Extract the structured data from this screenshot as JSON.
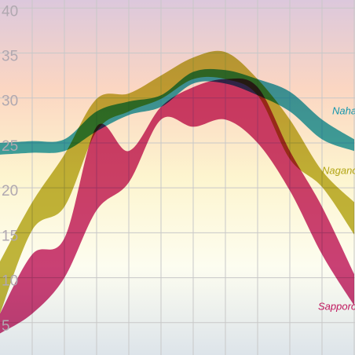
{
  "chart_data": {
    "type": "range-area",
    "ylim": [
      1.4,
      40.9
    ],
    "yticks": [
      5,
      10,
      15,
      20,
      25,
      30,
      35,
      40
    ],
    "grid": true,
    "series": [
      {
        "name": "Naha",
        "color": "#1496ad",
        "high": [
          25.0,
          25.2,
          25.4,
          28.5,
          29.6,
          30.3,
          32.9,
          33.1,
          32.1,
          30.7,
          27.6,
          25.4
        ],
        "low": [
          23.7,
          23.9,
          24.1,
          26.3,
          28.1,
          29.0,
          31.6,
          31.6,
          30.3,
          28.5,
          25.4,
          24.1
        ]
      },
      {
        "name": "Nagano",
        "color": "#b3a615",
        "high": [
          11.8,
          18.4,
          23.7,
          29.9,
          30.5,
          32.5,
          34.5,
          35.1,
          32.1,
          27.6,
          21.9,
          18.4
        ],
        "low": [
          6.0,
          15.3,
          17.9,
          26.3,
          28.5,
          29.9,
          32.1,
          32.1,
          30.3,
          23.2,
          20.1,
          14.8
        ]
      },
      {
        "name": "Sapporo",
        "color": "#c0175e",
        "high": [
          6.0,
          12.6,
          14.4,
          26.8,
          24.1,
          29.0,
          31.2,
          32.1,
          31.2,
          24.1,
          17.9,
          10.4
        ],
        "low": [
          3.8,
          6.0,
          10.0,
          17.5,
          20.6,
          27.6,
          26.8,
          27.6,
          25.0,
          19.7,
          12.6,
          6.9
        ]
      }
    ]
  }
}
